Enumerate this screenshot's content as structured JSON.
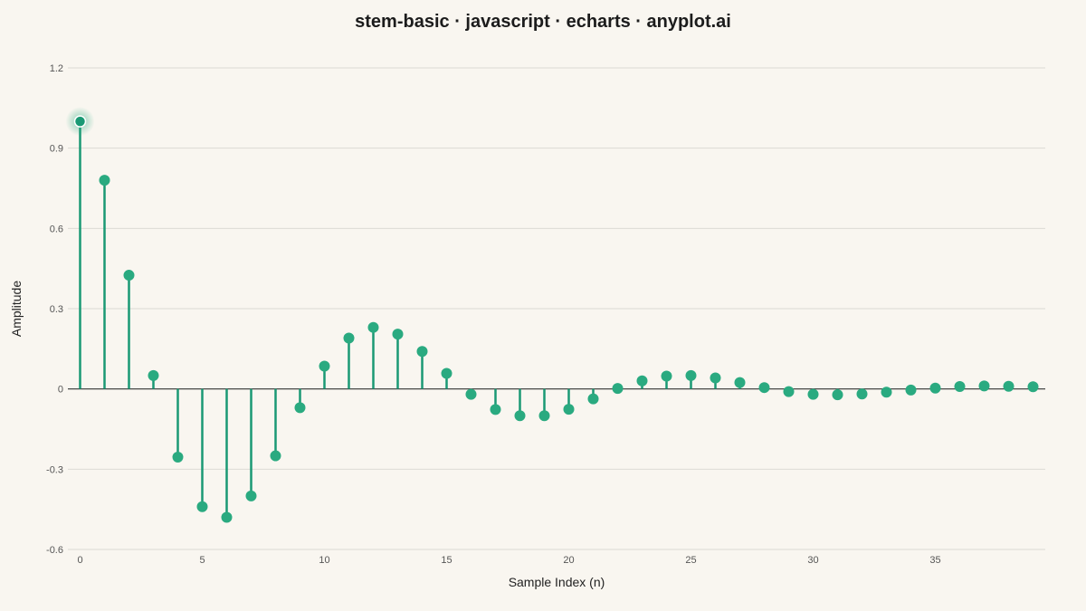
{
  "chart_data": {
    "type": "stem",
    "title": "stem-basic · javascript · echarts · anyplot.ai",
    "xlabel": "Sample Index (n)",
    "ylabel": "Amplitude",
    "xlim": [
      -0.5,
      39.5
    ],
    "ylim": [
      -0.6,
      1.2
    ],
    "x_ticks": [
      0,
      5,
      10,
      15,
      20,
      25,
      30,
      35
    ],
    "y_ticks": [
      -0.6,
      -0.3,
      0,
      0.3,
      0.6,
      0.9,
      1.2
    ],
    "y_tick_labels": [
      "-0.6",
      "-0.3",
      "0",
      "0.3",
      "0.6",
      "0.9",
      "1.2"
    ],
    "grid": true,
    "color": "#1a9974",
    "marker_color": "#2aaa80",
    "highlight_index": 0,
    "x": [
      0,
      1,
      2,
      3,
      4,
      5,
      6,
      7,
      8,
      9,
      10,
      11,
      12,
      13,
      14,
      15,
      16,
      17,
      18,
      19,
      20,
      21,
      22,
      23,
      24,
      25,
      26,
      27,
      28,
      29,
      30,
      31,
      32,
      33,
      34,
      35,
      36,
      37,
      38,
      39
    ],
    "values": [
      1.0,
      0.78,
      0.425,
      0.05,
      -0.255,
      -0.44,
      -0.48,
      -0.4,
      -0.25,
      -0.07,
      0.085,
      0.19,
      0.23,
      0.205,
      0.14,
      0.058,
      -0.02,
      -0.077,
      -0.1,
      -0.1,
      -0.076,
      -0.037,
      0.002,
      0.03,
      0.048,
      0.05,
      0.041,
      0.024,
      0.005,
      -0.01,
      -0.02,
      -0.022,
      -0.019,
      -0.012,
      -0.004,
      0.003,
      0.009,
      0.011,
      0.01,
      0.008
    ]
  }
}
